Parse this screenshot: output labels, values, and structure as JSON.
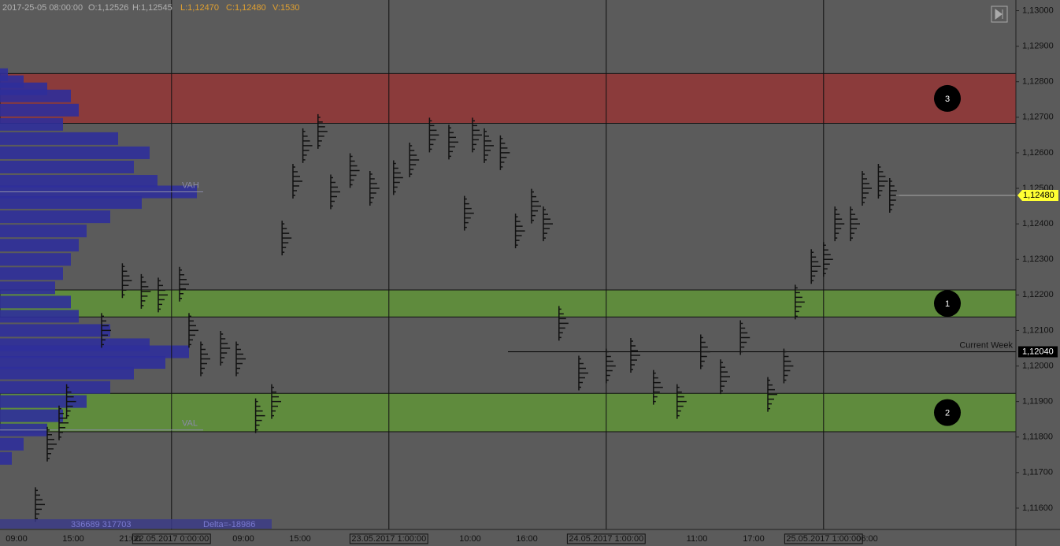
{
  "chart_data": {
    "type": "price",
    "header": {
      "time": "2017-25-05 08:00:00",
      "open": "O:1,12526",
      "high": "H:1,12545",
      "low": "L:1,12470",
      "close": "C:1,12480",
      "volume": "V:1530"
    },
    "footer": {
      "volumes": "336689 317703",
      "delta": "Delta=-18986"
    },
    "xlim": [
      -1.75,
      105.75
    ],
    "xticks": [
      {
        "value": 0,
        "label": "09:00"
      },
      {
        "value": 6,
        "label": "15:00"
      },
      {
        "value": 12,
        "label": "21:00"
      },
      {
        "value": 16.4,
        "label": "22.05.2017 0:00:00"
      },
      {
        "value": 24,
        "label": "09:00"
      },
      {
        "value": 30,
        "label": "15:00"
      },
      {
        "value": 39.4,
        "label": "23.05.2017 1:00:00"
      },
      {
        "value": 48,
        "label": "10:00"
      },
      {
        "value": 54,
        "label": "16:00"
      },
      {
        "value": 62.4,
        "label": "24.05.2017 1:00:00"
      },
      {
        "value": 72,
        "label": "11:00"
      },
      {
        "value": 78,
        "label": "17:00"
      },
      {
        "value": 85.4,
        "label": "25.05.2017 1:00:00"
      },
      {
        "value": 90,
        "label": "06:00"
      }
    ],
    "ylim": [
      1.1154,
      1.1303
    ],
    "yticks": [
      {
        "value": 1.116,
        "label": "1,11600"
      },
      {
        "value": 1.117,
        "label": "1,11700"
      },
      {
        "value": 1.118,
        "label": "1,11800"
      },
      {
        "value": 1.119,
        "label": "1,11900"
      },
      {
        "value": 1.12,
        "label": "1,12000"
      },
      {
        "value": 1.121,
        "label": "1,12100"
      },
      {
        "value": 1.122,
        "label": "1,12200"
      },
      {
        "value": 1.123,
        "label": "1,12300"
      },
      {
        "value": 1.124,
        "label": "1,12400"
      },
      {
        "value": 1.125,
        "label": "1,12500"
      },
      {
        "value": 1.126,
        "label": "1,12600"
      },
      {
        "value": 1.127,
        "label": "1,12700"
      },
      {
        "value": 1.128,
        "label": "1,12800"
      },
      {
        "value": 1.129,
        "label": "1,12900"
      },
      {
        "value": 1.13,
        "label": "1,13000"
      }
    ],
    "zones": [
      {
        "label": "3",
        "low": 1.12683,
        "high": 1.12823,
        "color": "#8b3b3b"
      },
      {
        "label": "1",
        "low": 1.12138,
        "high": 1.12214,
        "color": "#5f8b3d"
      },
      {
        "label": "2",
        "low": 1.11815,
        "high": 1.11923,
        "color": "#5f8b3d"
      }
    ],
    "levels": [
      {
        "name": "VAH",
        "value": 1.1249,
        "color": "#8a8aa8"
      },
      {
        "name": "VAL",
        "value": 1.1182,
        "color": "#8a8aa8"
      },
      {
        "name": "Current Week",
        "value": 1.1204,
        "label": "1,12040",
        "color": "#000000"
      }
    ],
    "last_price": {
      "value": 1.1248,
      "label": "1,12480",
      "color": "#ffff33"
    },
    "volume_profile": {
      "color": "#2f2f9a",
      "prices": [
        1.1282,
        1.128,
        1.1278,
        1.1276,
        1.1272,
        1.1268,
        1.1264,
        1.126,
        1.1256,
        1.1252,
        1.1249,
        1.1246,
        1.1242,
        1.1238,
        1.1234,
        1.123,
        1.1226,
        1.1222,
        1.1218,
        1.1214,
        1.121,
        1.1206,
        1.1204,
        1.1201,
        1.1198,
        1.1194,
        1.119,
        1.1186,
        1.1182,
        1.1178,
        1.1174
      ],
      "values": [
        10,
        30,
        60,
        90,
        100,
        80,
        150,
        190,
        170,
        200,
        250,
        180,
        140,
        110,
        100,
        90,
        80,
        70,
        90,
        100,
        140,
        190,
        240,
        210,
        170,
        140,
        110,
        80,
        60,
        30,
        15
      ]
    },
    "series": [
      {
        "name": "price",
        "color": "#111111",
        "x": [
          2,
          3.25,
          4.5,
          5.3,
          9,
          11.2,
          13.2,
          15,
          17.25,
          18.25,
          19.5,
          21.6,
          23.25,
          25.3,
          27,
          28.1,
          29.25,
          30.3,
          31.9,
          33.25,
          35.3,
          37.4,
          39.9,
          41.6,
          43.7,
          45.75,
          47.4,
          48.25,
          49.5,
          51.2,
          52.8,
          54.5,
          55.75,
          57.4,
          59.5,
          62.4,
          65,
          67.4,
          69.9,
          72.4,
          74.5,
          76.6,
          79.5,
          81.2,
          82.4,
          84.1,
          85.4,
          86.6,
          88.25,
          89.5,
          91.2,
          92.4
        ],
        "values": [
          1.1161,
          1.1178,
          1.1184,
          1.119,
          1.121,
          1.1224,
          1.1221,
          1.122,
          1.1223,
          1.121,
          1.1202,
          1.1205,
          1.1202,
          1.1186,
          1.119,
          1.1236,
          1.1252,
          1.1262,
          1.1266,
          1.1249,
          1.1255,
          1.125,
          1.1253,
          1.1258,
          1.1265,
          1.1263,
          1.1243,
          1.1265,
          1.1262,
          1.126,
          1.1238,
          1.1245,
          1.124,
          1.1212,
          1.1198,
          1.12,
          1.1203,
          1.1194,
          1.119,
          1.1204,
          1.1197,
          1.1208,
          1.1192,
          1.12,
          1.1218,
          1.1228,
          1.123,
          1.124,
          1.124,
          1.125,
          1.1252,
          1.1248
        ]
      }
    ]
  }
}
